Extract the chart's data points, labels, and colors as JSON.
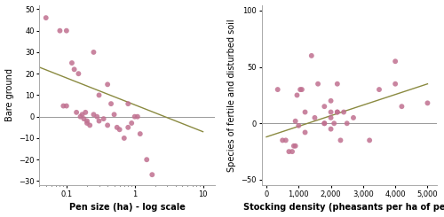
{
  "plot1": {
    "xlabel": "Pen size (ha) - log scale",
    "ylabel": "Bare ground",
    "xlim": [
      0.04,
      15
    ],
    "ylim": [
      -32,
      52
    ],
    "yticks": [
      -30,
      -20,
      -10,
      0,
      10,
      20,
      30,
      40,
      50
    ],
    "xticks": [
      0.1,
      1,
      10
    ],
    "scatter_x": [
      0.05,
      0.08,
      0.09,
      0.1,
      0.1,
      0.12,
      0.13,
      0.14,
      0.15,
      0.16,
      0.17,
      0.18,
      0.19,
      0.2,
      0.2,
      0.22,
      0.25,
      0.25,
      0.28,
      0.3,
      0.3,
      0.35,
      0.4,
      0.4,
      0.45,
      0.5,
      0.55,
      0.6,
      0.7,
      0.8,
      0.8,
      0.9,
      1.0,
      1.1,
      1.2,
      1.5,
      1.8
    ],
    "scatter_y": [
      46,
      40,
      5,
      5,
      40,
      25,
      22,
      2,
      20,
      0,
      1,
      -1,
      2,
      -2,
      -3,
      -4,
      30,
      1,
      0,
      10,
      -2,
      -1,
      15,
      -4,
      6,
      1,
      -5,
      -6,
      -10,
      6,
      -5,
      -3,
      0,
      0,
      -8,
      -20,
      -27
    ],
    "trend_x": [
      0.04,
      10
    ],
    "trend_y": [
      23,
      -7
    ],
    "hline_y": 0,
    "dot_color": "#c07090",
    "dot_size": 18,
    "dot_alpha": 0.85,
    "trend_color": "#8a8a40",
    "hline_color": "#999999"
  },
  "plot2": {
    "xlabel": "Stocking density (pheasants per ha of pen)",
    "ylabel": "Species of fertile and disturbed soil",
    "xlim": [
      -150,
      5300
    ],
    "ylim": [
      -55,
      105
    ],
    "yticks": [
      -50,
      0,
      50,
      100
    ],
    "xticks": [
      0,
      1000,
      2000,
      3000,
      4000,
      5000
    ],
    "xticklabels": [
      "0",
      "1,000",
      "2,000",
      "3,000",
      "4,000",
      "5,000"
    ],
    "scatter_x": [
      350,
      500,
      600,
      700,
      800,
      850,
      900,
      900,
      950,
      1000,
      1050,
      1100,
      1200,
      1200,
      1400,
      1500,
      1600,
      1800,
      1800,
      1800,
      2000,
      2000,
      2000,
      2100,
      2000,
      2200,
      2200,
      2200,
      2300,
      2400,
      2500,
      2700,
      3200,
      3500,
      4000,
      4000,
      4200,
      5000
    ],
    "scatter_y": [
      30,
      -15,
      -15,
      -25,
      -25,
      -20,
      -20,
      2,
      25,
      -2,
      30,
      30,
      -8,
      10,
      60,
      5,
      35,
      0,
      0,
      15,
      10,
      -5,
      5,
      0,
      20,
      10,
      10,
      35,
      -15,
      10,
      0,
      5,
      -15,
      30,
      35,
      55,
      15,
      18
    ],
    "trend_x": [
      0,
      5000
    ],
    "trend_y": [
      -12,
      35
    ],
    "hline_y": 0,
    "dot_color": "#c07090",
    "dot_size": 18,
    "dot_alpha": 0.85,
    "trend_color": "#8a8a40",
    "hline_color": "#999999"
  },
  "fig_bgcolor": "#ffffff",
  "tick_fontsize": 6,
  "xlabel_fontsize": 7,
  "ylabel_fontsize": 7
}
